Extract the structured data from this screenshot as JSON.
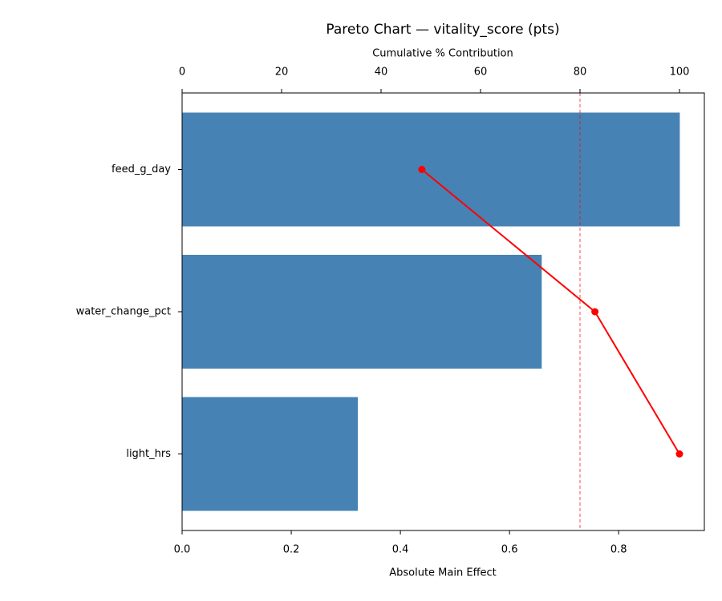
{
  "chart_data": {
    "type": "pareto",
    "title": "Pareto Chart — vitality_score (pts)",
    "xlabel": "Absolute Main Effect",
    "x2label": "Cumulative % Contribution",
    "categories": [
      "feed_g_day",
      "water_change_pct",
      "light_hrs"
    ],
    "values": [
      0.912,
      0.659,
      0.322
    ],
    "color": "#4682b4",
    "cumulative_values": [
      48.2,
      83.0,
      100
    ],
    "cumulative_color": "#ff0000",
    "threshold": 80,
    "xlim": [
      0,
      0.957
    ],
    "xticks": [
      {
        "value": 0,
        "label": "0.0"
      },
      0.2,
      0.4,
      0.6,
      0.8
    ],
    "x2lim": [
      0,
      105
    ],
    "x2ticks": [
      0,
      20,
      40,
      60,
      80,
      100
    ]
  }
}
